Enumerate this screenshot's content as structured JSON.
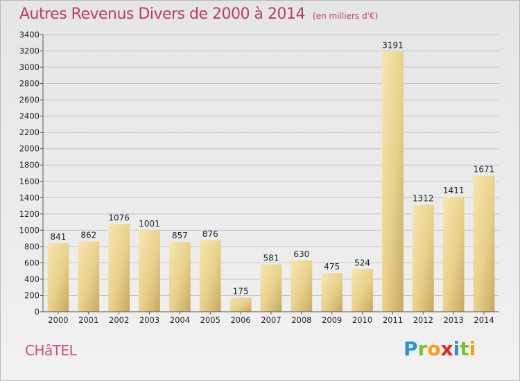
{
  "header": {
    "title": "Autres Revenus Divers de 2000 à 2014",
    "subtitle": "(en milliers d'€)"
  },
  "commune": "CHâTEL",
  "logo": {
    "letters": [
      "P",
      "r",
      "o",
      "x",
      "i",
      "t",
      "i"
    ]
  },
  "colors": {
    "title": "#c0396b",
    "bar_light": "#f5e3a4",
    "bar_dark": "#c8ad67"
  },
  "chart_data": {
    "type": "bar",
    "title": "Autres Revenus Divers de 2000 à 2014",
    "subtitle": "(en milliers d'€)",
    "categories": [
      "2000",
      "2001",
      "2002",
      "2003",
      "2004",
      "2005",
      "2006",
      "2007",
      "2008",
      "2009",
      "2010",
      "2011",
      "2012",
      "2013",
      "2014"
    ],
    "values": [
      841,
      862,
      1076,
      1001,
      857,
      876,
      175,
      581,
      630,
      475,
      524,
      3191,
      1312,
      1411,
      1671
    ],
    "ylim": [
      0,
      3400
    ],
    "yticks": [
      0,
      200,
      400,
      600,
      800,
      1000,
      1200,
      1400,
      1600,
      1800,
      2000,
      2200,
      2400,
      2600,
      2800,
      3000,
      3200,
      3400
    ],
    "grid": true
  }
}
